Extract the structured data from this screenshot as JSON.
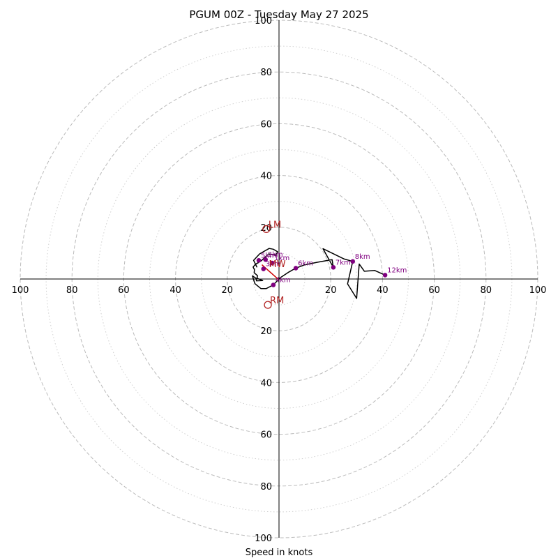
{
  "chart_data": {
    "type": "hodograph",
    "title": "PGUM 00Z - Tuesday May 27 2025",
    "xlabel": "Speed in knots",
    "ylabel": "",
    "ring_range": [
      0,
      100
    ],
    "major_rings": [
      20,
      40,
      60,
      80,
      100
    ],
    "minor_rings": [
      10,
      30,
      50,
      70,
      90
    ],
    "tick_labels": {
      "left": [
        "100",
        "80",
        "60",
        "40",
        "20"
      ],
      "right": [
        "20",
        "40",
        "60",
        "80",
        "100"
      ],
      "top": [
        "100",
        "80",
        "60",
        "40",
        "20"
      ],
      "bottom": [
        "20",
        "40",
        "60",
        "80",
        "100"
      ]
    },
    "grid": true,
    "colors": {
      "trace": "#000000",
      "height_markers": "#800080",
      "motion": "#b22222",
      "shear_vector": "#cc0000",
      "grid": "#bbbbbb"
    },
    "trace": [
      [
        -8.5,
        4.5
      ],
      [
        -9.8,
        7.2
      ],
      [
        -7.5,
        9.7
      ],
      [
        -3.8,
        11.8
      ],
      [
        -2.2,
        11.5
      ],
      [
        -0.5,
        10.5
      ],
      [
        -1.3,
        9.2
      ],
      [
        -4.0,
        9.7
      ],
      [
        -6.8,
        7.1
      ],
      [
        -9.2,
        5.6
      ],
      [
        -10.0,
        4.6
      ],
      [
        -9.5,
        3.6
      ],
      [
        -9.6,
        2.4
      ],
      [
        -8.3,
        1.3
      ],
      [
        -8.5,
        0.3
      ],
      [
        -6.3,
        -0.6
      ],
      [
        -8.7,
        -0.7
      ],
      [
        -8.9,
        0.3
      ],
      [
        -10.3,
        1.2
      ],
      [
        -9.3,
        -1.8
      ],
      [
        -7.0,
        -3.7
      ],
      [
        -4.9,
        -3.7
      ],
      [
        -2.2,
        -2.3
      ],
      [
        0.5,
        0.5
      ],
      [
        3.5,
        2.5
      ],
      [
        6.5,
        4.2
      ],
      [
        10.0,
        5.5
      ],
      [
        15.0,
        6.5
      ],
      [
        20.5,
        7.5
      ],
      [
        21.0,
        4.5
      ],
      [
        17.0,
        11.7
      ],
      [
        25.0,
        7.8
      ],
      [
        28.5,
        6.8
      ],
      [
        26.5,
        -1.9
      ],
      [
        30.0,
        -7.5
      ],
      [
        31.0,
        5.8
      ],
      [
        33.0,
        3.0
      ],
      [
        37.0,
        3.3
      ],
      [
        41.0,
        1.5
      ]
    ],
    "height_markers": [
      {
        "label": "1km",
        "u": -2.6,
        "v": 6.2
      },
      {
        "label": "2km",
        "u": -5.2,
        "v": 7.5
      },
      {
        "label": "3km",
        "u": -6.0,
        "v": 3.9
      },
      {
        "label": "4km",
        "u": -2.2,
        "v": -2.3
      },
      {
        "label": "5km",
        "u": -7.8,
        "v": 7.2
      },
      {
        "label": "6km",
        "u": 6.5,
        "v": 4.2
      },
      {
        "label": "7km",
        "u": 21.0,
        "v": 4.5
      },
      {
        "label": "8km",
        "u": 28.5,
        "v": 6.8
      },
      {
        "label": "12km",
        "u": 41.0,
        "v": 1.5
      }
    ],
    "storm_motion": [
      {
        "label": "LM",
        "u": -4.9,
        "v": 19.3
      },
      {
        "label": "RM",
        "u": -4.3,
        "v": -10.0
      }
    ],
    "mean_wind": {
      "label": "MW",
      "u": -3.9,
      "v": 5.7
    },
    "shear_vector": {
      "from": [
        -6.6,
        5.5
      ],
      "to": [
        -0.2,
        -0.2
      ]
    }
  }
}
